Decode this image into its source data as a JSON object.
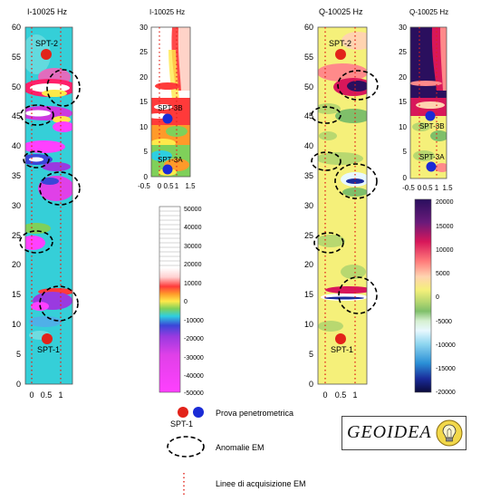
{
  "panels": [
    {
      "title": "I-10025 Hz",
      "y_ticks": [
        "60",
        "55",
        "50",
        "45",
        "40",
        "35",
        "30",
        "25",
        "20",
        "15",
        "10",
        "5",
        "0"
      ],
      "x_ticks": [
        "0",
        "0.5",
        "1"
      ],
      "markers": [
        {
          "label": "SPT-2",
          "color": "#e2231a"
        },
        {
          "label": "SPT-1",
          "color": "#e2231a"
        }
      ]
    },
    {
      "title": "I-10025 Hz",
      "y_ticks": [
        "30",
        "25",
        "20",
        "15",
        "10",
        "5",
        "0"
      ],
      "x_ticks": [
        "-0.5",
        "0",
        "0.5",
        "1",
        "1.5"
      ],
      "markers": [
        {
          "label": "SPT-3B",
          "color": "#1a2bd6"
        },
        {
          "label": "SPT-3A",
          "color": "#1a2bd6"
        }
      ]
    },
    {
      "title": "Q-10025 Hz",
      "y_ticks": [
        "60",
        "55",
        "50",
        "45",
        "40",
        "35",
        "30",
        "25",
        "20",
        "15",
        "10",
        "5",
        "0"
      ],
      "x_ticks": [
        "0",
        "0.5",
        "1"
      ],
      "markers": [
        {
          "label": "SPT-2",
          "color": "#e2231a"
        },
        {
          "label": "SPT-1",
          "color": "#e2231a"
        }
      ]
    },
    {
      "title": "Q-10025 Hz",
      "y_ticks": [
        "30",
        "25",
        "20",
        "15",
        "10",
        "5",
        "0"
      ],
      "x_ticks": [
        "-0.5",
        "0",
        "0.5",
        "1",
        "1.5"
      ],
      "markers": [
        {
          "label": "SPT-3B",
          "color": "#1a2bd6"
        },
        {
          "label": "SPT-3A",
          "color": "#1a2bd6"
        }
      ]
    }
  ],
  "colorbar_i": {
    "labels": [
      "50000",
      "40000",
      "30000",
      "20000",
      "10000",
      "0",
      "-10000",
      "-20000",
      "-30000",
      "-40000",
      "-50000"
    ]
  },
  "colorbar_q": {
    "labels": [
      "20000",
      "15000",
      "10000",
      "5000",
      "0",
      "-5000",
      "-10000",
      "-15000",
      "-20000"
    ]
  },
  "legend": {
    "spt_label": "SPT-1",
    "spt_text": "Prova penetrometrica",
    "anomaly_text": "Anomalie EM",
    "lines_text": "Linee di acquisizione EM"
  },
  "brand": {
    "name": "GEOIDEA"
  },
  "colors": {
    "red_marker": "#e2231a",
    "blue_marker": "#1a2bd6",
    "i_background": "#33ccd6",
    "q_background": "#f5f07a",
    "q_deep": "#2a0f5e"
  }
}
